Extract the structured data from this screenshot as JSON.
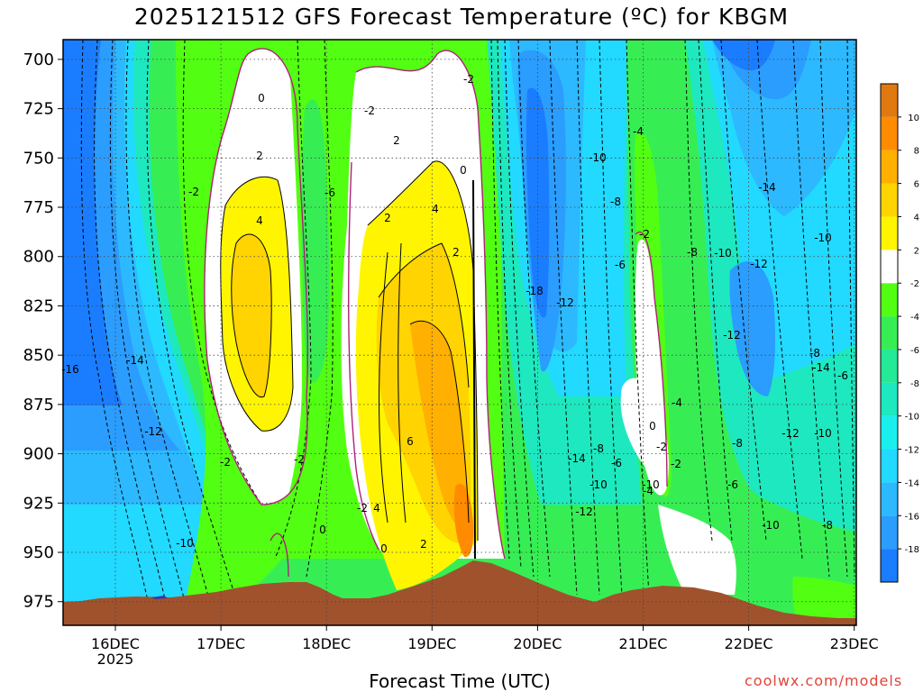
{
  "title": "2025121512 GFS Forecast Temperature (ºC) for KBGM",
  "x_axis_title": "Forecast Time (UTC)",
  "credit": "coolwx.com/models",
  "chart_data": {
    "type": "heatmap",
    "title": "2025121512 GFS Forecast Temperature (ºC) for KBGM",
    "xlabel": "Forecast Time (UTC)",
    "ylabel": "",
    "x_ticks": [
      "16DEC",
      "17DEC",
      "18DEC",
      "19DEC",
      "20DEC",
      "21DEC",
      "22DEC",
      "23DEC"
    ],
    "x_sublabel": "2025",
    "x_range": [
      15.5,
      23.0
    ],
    "y_ticks": [
      700,
      725,
      750,
      775,
      800,
      825,
      850,
      875,
      900,
      925,
      950,
      975
    ],
    "y_range": [
      690,
      987
    ],
    "colorbar": {
      "levels": [
        -20,
        -18,
        -16,
        -14,
        -12,
        -10,
        -8,
        -6,
        -4,
        -2,
        2,
        4,
        6,
        8,
        10,
        12
      ],
      "tick_labels": [
        "-18",
        "-16",
        "-14",
        "-12",
        "-10",
        "-8",
        "-6",
        "-4",
        "-2",
        "2",
        "4",
        "6",
        "8",
        "10"
      ],
      "colors": [
        "#1a7dff",
        "#2a9dff",
        "#2cb9ff",
        "#22d9ff",
        "#19f0ee",
        "#1ee8bf",
        "#22ea96",
        "#36ee54",
        "#52ff12",
        "#ffffff",
        "#fff500",
        "#ffd400",
        "#ffb000",
        "#ff8c00",
        "#e07a10"
      ]
    },
    "contour_labels": [
      "-16",
      "-14",
      "-12",
      "-10",
      "-2",
      "0",
      "2",
      "4",
      "-2",
      "-6",
      "-2",
      "0",
      "2",
      "4",
      "2",
      "6",
      "-2",
      "4",
      "2",
      "0",
      "2",
      "0",
      "-2",
      "-2",
      "-18",
      "-12",
      "-14",
      "-10",
      "-12",
      "-10",
      "-8",
      "-6",
      "-4",
      "-8",
      "-6",
      "-10",
      "-4",
      "-2",
      "0",
      "-4",
      "-2",
      "-2",
      "-8",
      "-10",
      "-12",
      "-14",
      "-12",
      "-8",
      "-6",
      "-10",
      "-14",
      "-10",
      "-8",
      "-6",
      "-12",
      "-10",
      "-8"
    ],
    "terrain_color": "#a0522d",
    "underground_color": "#3838a0",
    "grid": true,
    "colorbar_position": "right"
  }
}
